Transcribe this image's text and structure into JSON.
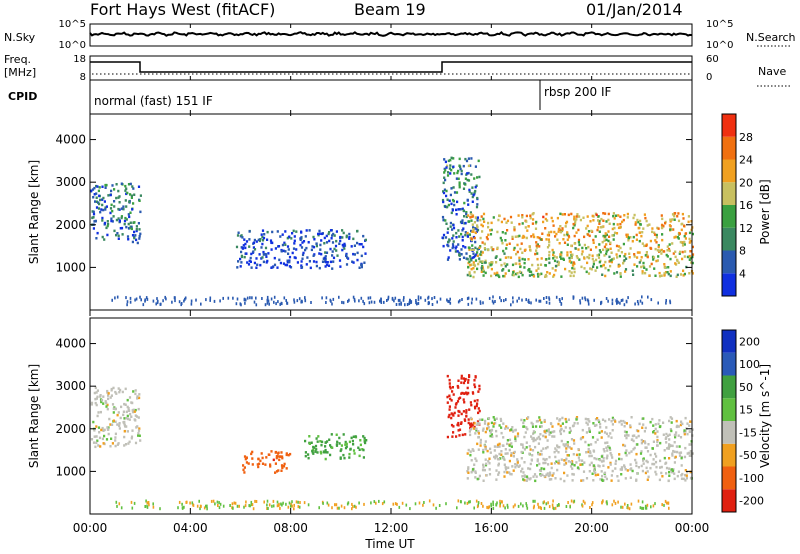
{
  "header": {
    "title": "Fort Hays West (fitACF)",
    "beam": "Beam 19",
    "date": "01/Jan/2014"
  },
  "strip": {
    "nsky_label": "N.Sky",
    "nsearch_label": "N.Search",
    "freq_label_1": "Freq.",
    "freq_label_2": "[MHz]",
    "nave_label": "Nave",
    "cpid_label": "CPID",
    "left_ticks": [
      "10^5",
      "10^0"
    ],
    "right_ticks": [
      "10^5",
      "10^0"
    ],
    "freq_ticks": [
      "18",
      "8"
    ],
    "nave_ticks": [
      "60",
      "0"
    ],
    "cpid_mode_1": "normal (fast) 151 IF",
    "cpid_mode_2": "rbsp 200 IF"
  },
  "colors": {
    "power_scale": [
      "#1030e0",
      "#2a5ab0",
      "#3a8860",
      "#3aa040",
      "#c8c060",
      "#f0a020",
      "#f07010",
      "#f03010"
    ],
    "velocity_scale": [
      "#1030c0",
      "#2a5ab8",
      "#40a040",
      "#60c040",
      "#c0c0b8",
      "#f0a020",
      "#f06010",
      "#e02010"
    ]
  },
  "chart_data": [
    {
      "type": "heatmap",
      "name": "power",
      "ylabel": "Slant Range [km]",
      "yticks": [
        "1000",
        "2000",
        "3000",
        "4000"
      ],
      "ylim": [
        0,
        4600
      ],
      "xlim_hours": [
        0,
        24
      ],
      "colorbar_label": "Power [dB]",
      "colorbar_ticks": [
        "4",
        "8",
        "12",
        "16",
        "20",
        "24",
        "28"
      ],
      "colorbar_range": [
        0,
        32
      ],
      "regions": [
        {
          "t0": 0.0,
          "t1": 2.0,
          "r0": 1600,
          "r1": 3000,
          "value": 10
        },
        {
          "t0": 5.8,
          "t1": 11.0,
          "r0": 1000,
          "r1": 1900,
          "value": 6
        },
        {
          "t0": 14.0,
          "t1": 15.5,
          "r0": 1200,
          "r1": 3600,
          "value": 10
        },
        {
          "t0": 15.0,
          "t1": 24.0,
          "r0": 800,
          "r1": 2300,
          "value": 22
        }
      ]
    },
    {
      "type": "heatmap",
      "name": "velocity",
      "ylabel": "Slant Range [km]",
      "yticks": [
        "1000",
        "2000",
        "3000",
        "4000"
      ],
      "ylim": [
        0,
        4600
      ],
      "xlim_hours": [
        0,
        24
      ],
      "xticks": [
        "00:00",
        "04:00",
        "08:00",
        "12:00",
        "16:00",
        "20:00",
        "00:00"
      ],
      "xlabel": "Time UT",
      "colorbar_label": "Velocity [m s^-1]",
      "colorbar_ticks": [
        "200",
        "100",
        "50",
        "15",
        "-15",
        "-50",
        "-100",
        "-200"
      ],
      "regions": [
        {
          "t0": 0.0,
          "t1": 2.0,
          "r0": 1600,
          "r1": 3000,
          "value": 0
        },
        {
          "t0": 6.0,
          "t1": 8.0,
          "r0": 1000,
          "r1": 1500,
          "value": -60
        },
        {
          "t0": 8.5,
          "t1": 11.0,
          "r0": 1300,
          "r1": 1900,
          "value": 40
        },
        {
          "t0": 14.2,
          "t1": 15.5,
          "r0": 1800,
          "r1": 3300,
          "value": -200
        },
        {
          "t0": 15.0,
          "t1": 24.0,
          "r0": 800,
          "r1": 2300,
          "value": 0
        }
      ]
    }
  ]
}
